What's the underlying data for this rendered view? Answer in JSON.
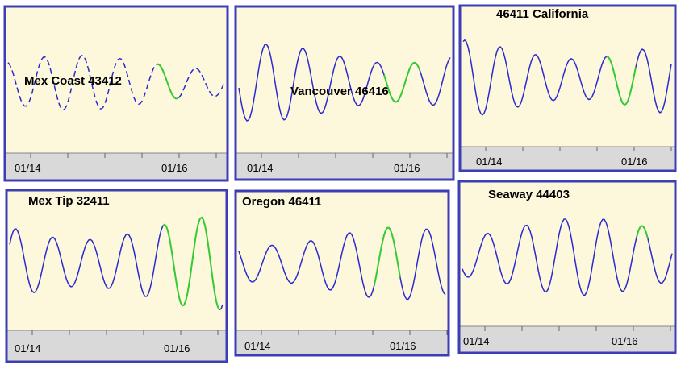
{
  "panels": [
    {
      "title": "Mex Coast 43412",
      "xlabels": [
        "01/14",
        "01/16"
      ]
    },
    {
      "title": "Vancouver 46416",
      "xlabels": [
        "01/14",
        "01/16"
      ]
    },
    {
      "title": "46411 California",
      "xlabels": [
        "01/14",
        "01/16"
      ]
    },
    {
      "title": "Mex Tip 32411",
      "xlabels": [
        "01/14",
        "01/16"
      ]
    },
    {
      "title": "Oregon 46411",
      "xlabels": [
        "01/14",
        "01/16"
      ]
    },
    {
      "title": "Seaway 44403",
      "xlabels": [
        "01/14",
        "01/16"
      ]
    }
  ]
}
